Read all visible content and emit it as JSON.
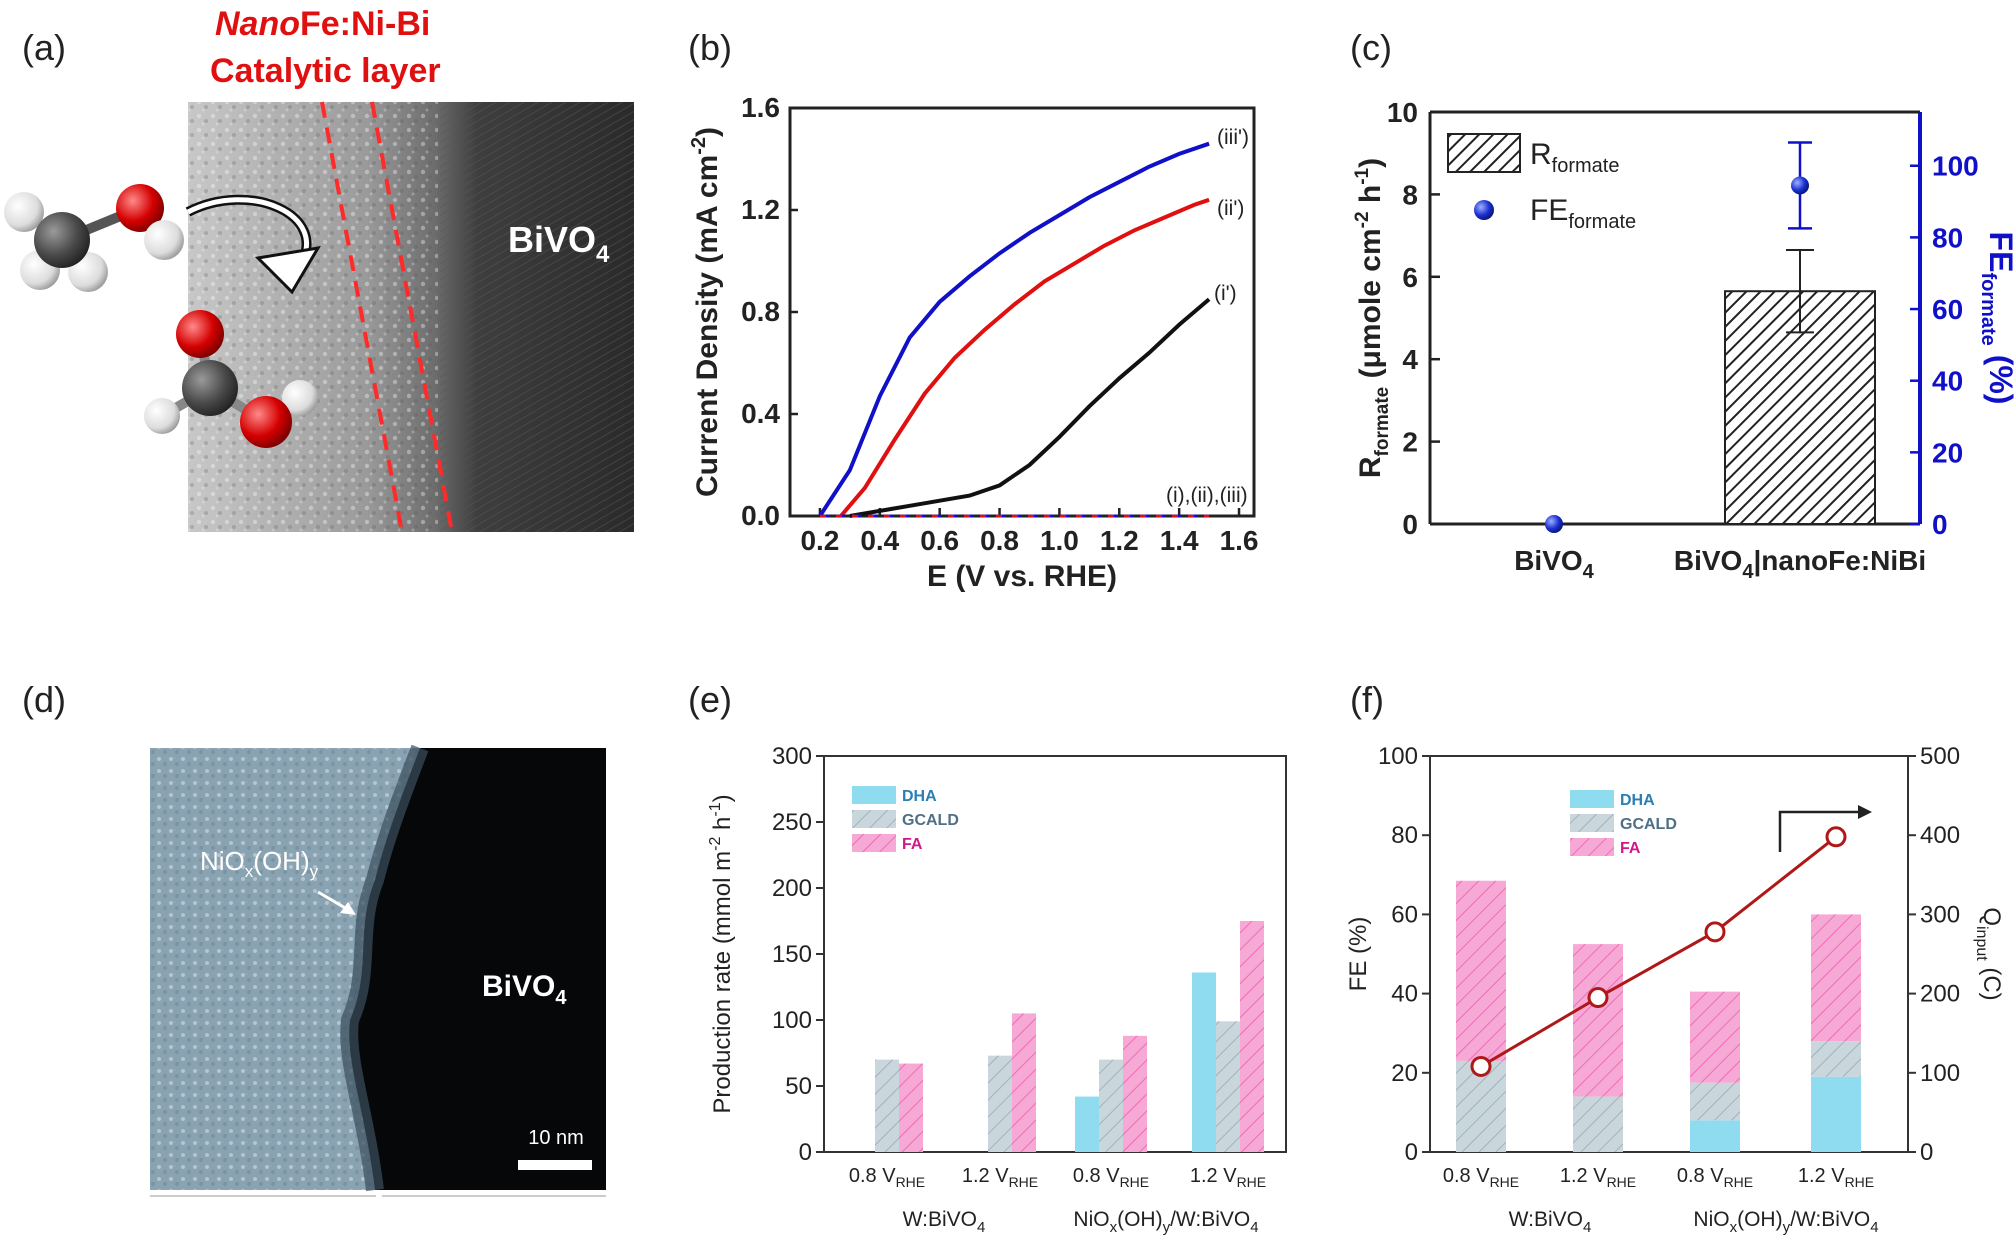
{
  "panels": {
    "a": {
      "letter": "(a)",
      "title_line1_italic": "Nano",
      "title_line1_rest": "Fe:Ni-Bi",
      "title_line2": "Catalytic layer",
      "material": "BiVO",
      "material_sub": "4"
    },
    "d": {
      "letter": "(d)",
      "layer_main": "NiO",
      "layer_x": "x",
      "layer_oh": "(OH)",
      "layer_y": "y",
      "material": "BiVO",
      "material_sub": "4",
      "scalebar": "10 nm"
    }
  },
  "colors": {
    "red": "#e01010",
    "blue": "#1010c8",
    "black": "#111111",
    "dha": "#8fdcf0",
    "gcald": "#c9d7dd",
    "fa": "#f7a9d6",
    "qline": "#b01818"
  },
  "chart_data": [
    {
      "panel": "(b)",
      "type": "line",
      "xlabel": "E (V vs. RHE)",
      "ylabel_main": "Current Density (mA cm",
      "ylabel_sup": "-2",
      "ylabel_end": ")",
      "xlim": [
        0.1,
        1.65
      ],
      "ylim": [
        0,
        1.6
      ],
      "xticks": [
        "0.2",
        "0.4",
        "0.6",
        "0.8",
        "1.0",
        "1.2",
        "1.4",
        "1.6"
      ],
      "yticks": [
        "0.0",
        "0.4",
        "0.8",
        "1.2",
        "1.6"
      ],
      "labels": {
        "iii_p": "(iii')",
        "ii_p": "(ii')",
        "i_p": "(i')",
        "dark": "(i),(ii),(iii)"
      },
      "series": [
        {
          "color": "blue",
          "x": [
            0.2,
            0.3,
            0.4,
            0.5,
            0.6,
            0.7,
            0.8,
            0.9,
            1.0,
            1.1,
            1.2,
            1.3,
            1.4,
            1.5
          ],
          "y": [
            0.0,
            0.18,
            0.47,
            0.7,
            0.84,
            0.94,
            1.03,
            1.11,
            1.18,
            1.25,
            1.31,
            1.37,
            1.42,
            1.46
          ]
        },
        {
          "color": "red",
          "x": [
            0.27,
            0.35,
            0.45,
            0.55,
            0.65,
            0.75,
            0.85,
            0.95,
            1.05,
            1.15,
            1.25,
            1.35,
            1.45,
            1.5
          ],
          "y": [
            0.0,
            0.11,
            0.3,
            0.48,
            0.62,
            0.73,
            0.83,
            0.92,
            0.99,
            1.06,
            1.12,
            1.17,
            1.22,
            1.24
          ]
        },
        {
          "color": "black",
          "x": [
            0.3,
            0.4,
            0.5,
            0.6,
            0.7,
            0.8,
            0.9,
            1.0,
            1.1,
            1.2,
            1.3,
            1.4,
            1.5
          ],
          "y": [
            0.0,
            0.02,
            0.04,
            0.06,
            0.08,
            0.12,
            0.2,
            0.31,
            0.43,
            0.54,
            0.64,
            0.75,
            0.85
          ]
        },
        {
          "color": "dark",
          "x": [
            0.2,
            1.5
          ],
          "y": [
            0.0,
            0.0
          ]
        }
      ]
    },
    {
      "panel": "(c)",
      "type": "bar",
      "categories": [
        "BiVO",
        "BiVO"
      ],
      "category_subs": [
        "4",
        "4"
      ],
      "category_suffix": [
        "",
        "|nanoFe:NiBi"
      ],
      "bar_values": [
        0,
        5.65
      ],
      "bar_error": [
        0,
        1.0
      ],
      "fe_values": [
        0,
        94.5
      ],
      "fe_error": [
        0,
        12
      ],
      "ylim_left": [
        0,
        10
      ],
      "ylim_right": [
        0,
        115
      ],
      "yticks_left": [
        "0",
        "2",
        "4",
        "6",
        "8",
        "10"
      ],
      "yticks_right": [
        "0",
        "20",
        "40",
        "60",
        "80",
        "100"
      ],
      "ylabel_left_main": "R",
      "ylabel_left_sub": "formate",
      "ylabel_left_mid": " (μmole cm",
      "ylabel_left_sup1": "-2",
      "ylabel_left_mid2": " h",
      "ylabel_left_sup2": "-1",
      "ylabel_left_end": ")",
      "ylabel_right_main": "FE",
      "ylabel_right_sub": "formate",
      "ylabel_right_end": " (%)",
      "legend": [
        {
          "main": "R",
          "sub": "formate"
        },
        {
          "main": "FE",
          "sub": "formate"
        }
      ],
      "legend_position": "top-left"
    },
    {
      "panel": "(e)",
      "type": "bar",
      "group_labels": [
        "W:BiVO",
        "NiO",
        "x",
        "(OH)",
        "y",
        "/W:BiVO",
        "4"
      ],
      "tick_labels": [
        "0.8 V",
        "1.2 V",
        "0.8 V",
        "1.2 V"
      ],
      "tick_sub": "RHE",
      "ylabel": "Production rate (mmol m",
      "ylabel_sup1": "-2",
      "ylabel_mid": " h",
      "ylabel_sup2": "-1",
      "ylabel_end": ")",
      "ylim": [
        0,
        300
      ],
      "yticks": [
        "0",
        "50",
        "100",
        "150",
        "200",
        "250",
        "300"
      ],
      "series": [
        {
          "name": "DHA",
          "values": [
            0,
            0,
            42,
            136
          ]
        },
        {
          "name": "GCALD",
          "values": [
            70,
            73,
            70,
            99
          ]
        },
        {
          "name": "FA",
          "values": [
            67,
            105,
            88,
            175
          ]
        }
      ],
      "legend_position": "top-left"
    },
    {
      "panel": "(f)",
      "type": "bar",
      "tick_labels": [
        "0.8 V",
        "1.2 V",
        "0.8 V",
        "1.2 V"
      ],
      "tick_sub": "RHE",
      "ylabel_left": "FE (%)",
      "ylabel_right_main": "Q",
      "ylabel_right_sub": "input",
      "ylabel_right_end": " (C)",
      "ylim_left": [
        0,
        100
      ],
      "ylim_right": [
        0,
        500
      ],
      "yticks_left": [
        "0",
        "20",
        "40",
        "60",
        "80",
        "100"
      ],
      "yticks_right": [
        "0",
        "100",
        "200",
        "300",
        "400",
        "500"
      ],
      "series": [
        {
          "name": "DHA",
          "values": [
            0,
            0,
            8,
            19
          ]
        },
        {
          "name": "GCALD",
          "values": [
            23,
            14,
            17.5,
            28
          ]
        },
        {
          "name": "FA",
          "values": [
            68.5,
            52.5,
            40.5,
            60
          ]
        }
      ],
      "q_values": [
        108,
        195,
        278,
        398
      ],
      "legend_position": "top-center"
    }
  ]
}
